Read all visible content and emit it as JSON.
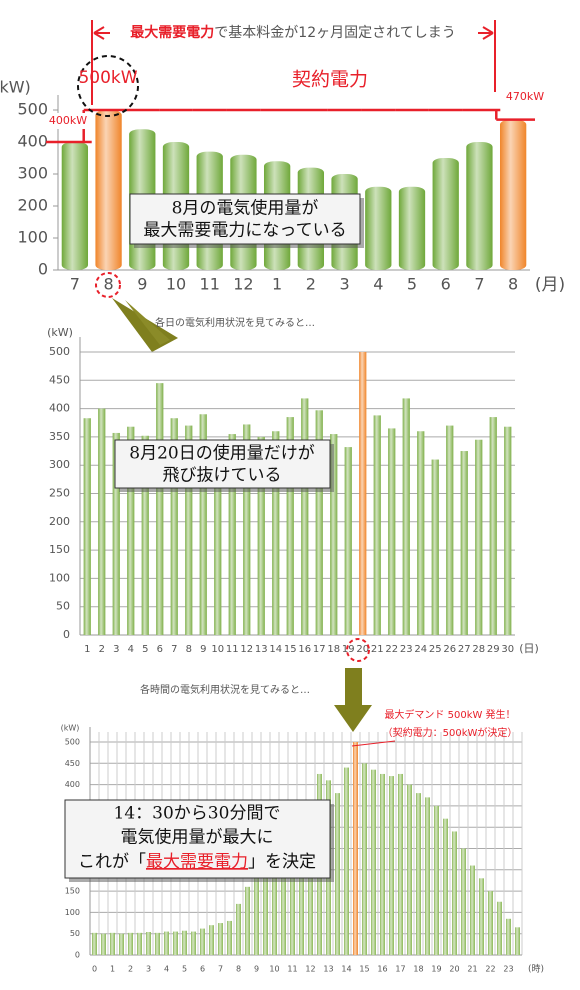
{
  "chart_data": [
    {
      "type": "bar",
      "y_unit": "(kW)",
      "x_unit": "(月)",
      "note": [
        "最大需要電力",
        "で基本料金が12ヶ月固定されてしまう"
      ],
      "peak_label": "500kW",
      "contract_label": "契約電力",
      "start_label": "400kW",
      "end_label": "470kW",
      "callout": [
        "8月の電気使用量が",
        "最大需要電力になっている"
      ],
      "categories": [
        "7",
        "8",
        "9",
        "10",
        "11",
        "12",
        "1",
        "2",
        "3",
        "4",
        "5",
        "6",
        "7",
        "8"
      ],
      "values": [
        400,
        500,
        440,
        400,
        370,
        360,
        340,
        320,
        300,
        260,
        260,
        350,
        400,
        470
      ],
      "color": "#6fa83a",
      "highlight_color": "#f0852a",
      "highlight": [
        1,
        13
      ],
      "contract": {
        "name": "契約電力",
        "color": "#e8202a",
        "values": [
          400,
          500,
          500,
          500,
          500,
          500,
          500,
          500,
          500,
          500,
          500,
          500,
          500,
          470
        ]
      },
      "ylim": [
        0,
        500
      ],
      "yticks": [
        0,
        100,
        200,
        300,
        400,
        500
      ],
      "grid": false
    },
    {
      "type": "bar",
      "title": "各日の電気利用状況を見てみると…",
      "y_unit": "(kW)",
      "x_unit": "(日)",
      "callout": [
        "8月20日の使用量だけが",
        "飛び抜けている"
      ],
      "categories": [
        "1",
        "2",
        "3",
        "4",
        "5",
        "6",
        "7",
        "8",
        "9",
        "10",
        "11",
        "12",
        "13",
        "14",
        "15",
        "16",
        "17",
        "18",
        "19",
        "20",
        "21",
        "22",
        "23",
        "24",
        "25",
        "26",
        "27",
        "28",
        "29",
        "30"
      ],
      "values": [
        383,
        400,
        357,
        368,
        352,
        445,
        383,
        370,
        390,
        345,
        355,
        372,
        350,
        360,
        385,
        418,
        397,
        355,
        332,
        500,
        388,
        365,
        418,
        360,
        310,
        370,
        325,
        345,
        385,
        368
      ],
      "color": "#7fb04a",
      "highlight_color": "#f0852a",
      "highlight": [
        19
      ],
      "ylim": [
        0,
        500
      ],
      "yticks": [
        0,
        50,
        100,
        150,
        200,
        250,
        300,
        350,
        400,
        450,
        500
      ],
      "grid": true
    },
    {
      "type": "bar",
      "title": "各時間の電気利用状況を見てみると…",
      "y_unit": "(kW)",
      "x_unit": "(時)",
      "note": [
        "最大デマンド 500kW 発生！",
        "（契約電力：500kWが決定）"
      ],
      "callout": [
        [
          "14：30から30分間で"
        ],
        [
          "電気使用量が最大に"
        ],
        [
          "これが「",
          "最大需要電力",
          "」を決定"
        ]
      ],
      "categories": [
        "0",
        null,
        "1",
        null,
        "2",
        null,
        "3",
        null,
        "4",
        null,
        "5",
        null,
        "6",
        null,
        "7",
        null,
        "8",
        null,
        "9",
        null,
        "10",
        null,
        "11",
        null,
        "12",
        null,
        "13",
        null,
        "14",
        null,
        "15",
        null,
        "16",
        null,
        "17",
        null,
        "18",
        null,
        "19",
        null,
        "20",
        null,
        "21",
        null,
        "22",
        null,
        "23",
        null
      ],
      "values": [
        52,
        50,
        52,
        50,
        52,
        52,
        54,
        52,
        55,
        55,
        57,
        55,
        62,
        70,
        75,
        80,
        120,
        160,
        225,
        270,
        300,
        290,
        300,
        300,
        340,
        425,
        410,
        380,
        440,
        500,
        450,
        435,
        425,
        420,
        425,
        400,
        380,
        370,
        350,
        320,
        290,
        250,
        210,
        180,
        150,
        125,
        85,
        65
      ],
      "color": "#8ab856",
      "highlight_color": "#f0852a",
      "highlight": [
        29
      ],
      "ylim": [
        0,
        500
      ],
      "yticks": [
        0,
        50,
        100,
        150,
        200,
        250,
        300,
        350,
        400,
        450,
        500
      ],
      "grid": true,
      "vgrid": true
    }
  ]
}
